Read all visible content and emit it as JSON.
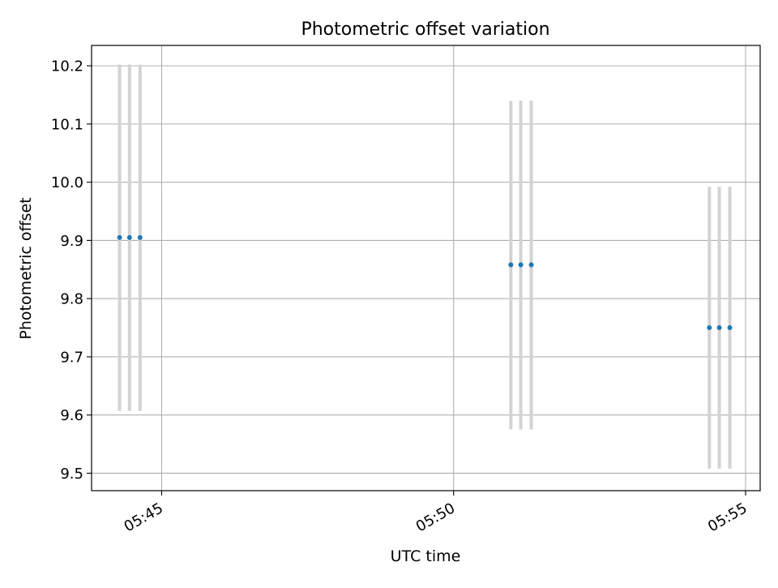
{
  "chart_data": {
    "type": "scatter",
    "title": "Photometric offset variation",
    "xlabel": "UTC time",
    "ylabel": "Photometric offset",
    "x_unit": "minutes after 05:00 UTC",
    "xlim": [
      43.8,
      55.25
    ],
    "ylim": [
      9.47,
      10.235
    ],
    "grid": true,
    "xticks": [
      {
        "value": 45,
        "label": "05:45"
      },
      {
        "value": 50,
        "label": "05:50"
      },
      {
        "value": 55,
        "label": "05:55"
      }
    ],
    "yticks": [
      {
        "value": 9.5,
        "label": "9.5"
      },
      {
        "value": 9.6,
        "label": "9.6"
      },
      {
        "value": 9.7,
        "label": "9.7"
      },
      {
        "value": 9.8,
        "label": "9.8"
      },
      {
        "value": 9.9,
        "label": "9.9"
      },
      {
        "value": 10.0,
        "label": "10.0"
      },
      {
        "value": 10.1,
        "label": "10.1"
      },
      {
        "value": 10.2,
        "label": "10.2"
      }
    ],
    "points": [
      {
        "x": 44.28,
        "y": 9.905,
        "err_low": 9.607,
        "err_high": 10.202
      },
      {
        "x": 44.45,
        "y": 9.905,
        "err_low": 9.607,
        "err_high": 10.202
      },
      {
        "x": 44.63,
        "y": 9.905,
        "err_low": 9.607,
        "err_high": 10.202
      },
      {
        "x": 50.98,
        "y": 9.858,
        "err_low": 9.575,
        "err_high": 10.14
      },
      {
        "x": 51.15,
        "y": 9.858,
        "err_low": 9.575,
        "err_high": 10.14
      },
      {
        "x": 51.33,
        "y": 9.858,
        "err_low": 9.575,
        "err_high": 10.14
      },
      {
        "x": 54.38,
        "y": 9.75,
        "err_low": 9.508,
        "err_high": 9.992
      },
      {
        "x": 54.55,
        "y": 9.75,
        "err_low": 9.508,
        "err_high": 9.992
      },
      {
        "x": 54.73,
        "y": 9.75,
        "err_low": 9.508,
        "err_high": 9.992
      }
    ],
    "colors": {
      "point": "#1f77b4",
      "errorbar": "#d3d3d3",
      "grid": "#b0b0b0",
      "axis": "#000000"
    }
  }
}
